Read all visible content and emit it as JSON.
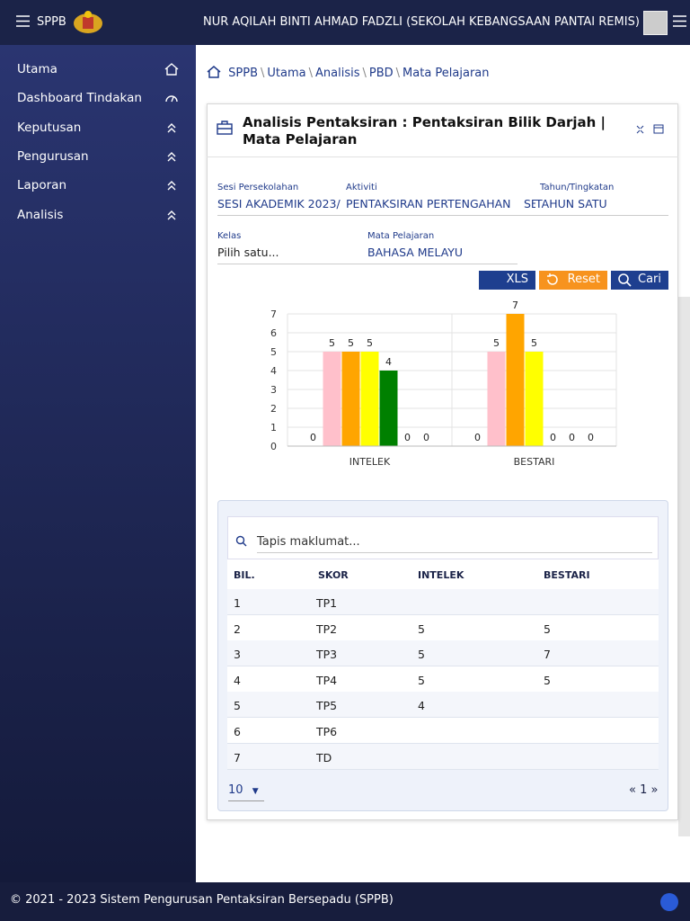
{
  "header": {
    "app": "SPPB",
    "user": "NUR AQILAH BINTI AHMAD FADZLI (SEKOLAH KEBANGSAAN PANTAI REMIS)"
  },
  "sidebar": {
    "items": [
      "Utama",
      "Dashboard Tindakan",
      "Keputusan",
      "Pengurusan",
      "Laporan",
      "Analisis"
    ]
  },
  "breadcrumb": [
    "SPPB",
    "Utama",
    "Analisis",
    "PBD",
    "Mata Pelajaran"
  ],
  "panel": {
    "title": "Analisis Pentaksiran : Pentaksiran Bilik Darjah | Mata Pelajaran",
    "form": {
      "sesi_label": "Sesi Persekolahan",
      "sesi_value": "SESI AKADEMIK 2023/",
      "aktiviti_label": "Aktiviti",
      "aktiviti_value": "PENTAKSIRAN PERTENGAHAN",
      "aktiviti_cut": "SE",
      "tahun_label": "Tahun/Tingkatan",
      "tahun_value": "TAHUN SATU",
      "kelas_label": "Kelas",
      "kelas_value": "Pilih satu...",
      "mp_label": "Mata Pelajaran",
      "mp_value": "BAHASA MELAYU"
    },
    "buttons": [
      "XLS",
      "Reset",
      "Cari"
    ]
  },
  "chart_data": {
    "type": "bar",
    "categories": [
      "INTELEK",
      "BESTARI"
    ],
    "series": [
      {
        "color": "#9ab8e0",
        "values": [
          0,
          0
        ]
      },
      {
        "color": "#ffc0cb",
        "values": [
          5,
          5
        ]
      },
      {
        "color": "#ffa500",
        "values": [
          5,
          7
        ]
      },
      {
        "color": "#ffff00",
        "values": [
          5,
          5
        ]
      },
      {
        "color": "#008000",
        "values": [
          4,
          0
        ]
      },
      {
        "color": "#8a2be2",
        "values": [
          0,
          0
        ]
      },
      {
        "color": "#808080",
        "values": [
          0,
          0
        ]
      }
    ],
    "ylim": [
      0,
      7
    ],
    "yticks": [
      0,
      1,
      2,
      3,
      4,
      5,
      6,
      7
    ],
    "grid": true
  },
  "table": {
    "search_placeholder": "Tapis maklumat...",
    "columns": [
      "BIL.",
      "SKOR",
      "INTELEK",
      "BESTARI"
    ],
    "rows": [
      [
        1,
        "TP1",
        null,
        null
      ],
      [
        2,
        "TP2",
        5,
        5
      ],
      [
        3,
        "TP3",
        5,
        7
      ],
      [
        4,
        "TP4",
        5,
        5
      ],
      [
        5,
        "TP5",
        4,
        null
      ],
      [
        6,
        "TP6",
        null,
        null
      ],
      [
        7,
        "TD",
        null,
        null
      ]
    ]
  },
  "pagination": {
    "page_size": "10",
    "pages": "« 1 »"
  },
  "footer": "© 2021 - 2023 Sistem Pengurusan Pentaksiran Bersepadu (SPPB)"
}
